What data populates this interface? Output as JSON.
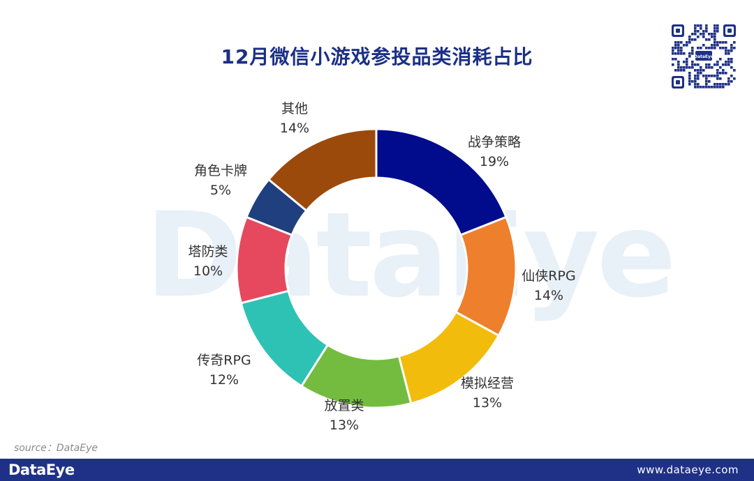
{
  "title": "12月微信小游戏参投品类消耗占比",
  "watermark": "DataEye",
  "qr_badge": "DataEye",
  "source": "source：DataEye",
  "footer": {
    "brand": "DataEye",
    "url": "www.dataeye.com"
  },
  "chart_data": {
    "type": "pie",
    "variant": "donut",
    "title": "12月微信小游戏参投品类消耗占比",
    "unit": "%",
    "categories": [
      "战争策略",
      "仙侠RPG",
      "模拟经营",
      "放置类",
      "传奇RPG",
      "塔防类",
      "角色卡牌",
      "其他"
    ],
    "values": [
      19,
      14,
      13,
      13,
      12,
      10,
      5,
      14
    ],
    "labels": [
      "19%",
      "14%",
      "13%",
      "13%",
      "12%",
      "10%",
      "5%",
      "14%"
    ],
    "colors": [
      "#000c8c",
      "#ee7f2d",
      "#f2bc0c",
      "#74bc40",
      "#2ec2b5",
      "#e6485e",
      "#1f3f7f",
      "#9b4a0c"
    ]
  }
}
